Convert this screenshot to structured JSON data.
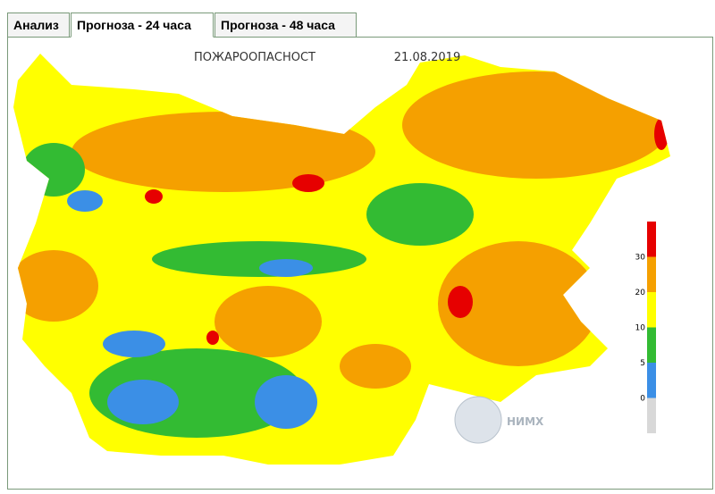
{
  "tabs": [
    "Анализ",
    "Прогноза - 24 часа",
    "Прогноза - 48 часа"
  ],
  "map": {
    "title": "ПОЖАРООПАСНОСТ",
    "date": "21.08.2019",
    "logo_text": "НИМХ",
    "legend": {
      "ticks": [
        0,
        5,
        10,
        20,
        30
      ],
      "colors": [
        "#d8d8d8",
        "#3b8fe6",
        "#33bb33",
        "#ffff00",
        "#f5a000",
        "#e60000"
      ]
    }
  }
}
